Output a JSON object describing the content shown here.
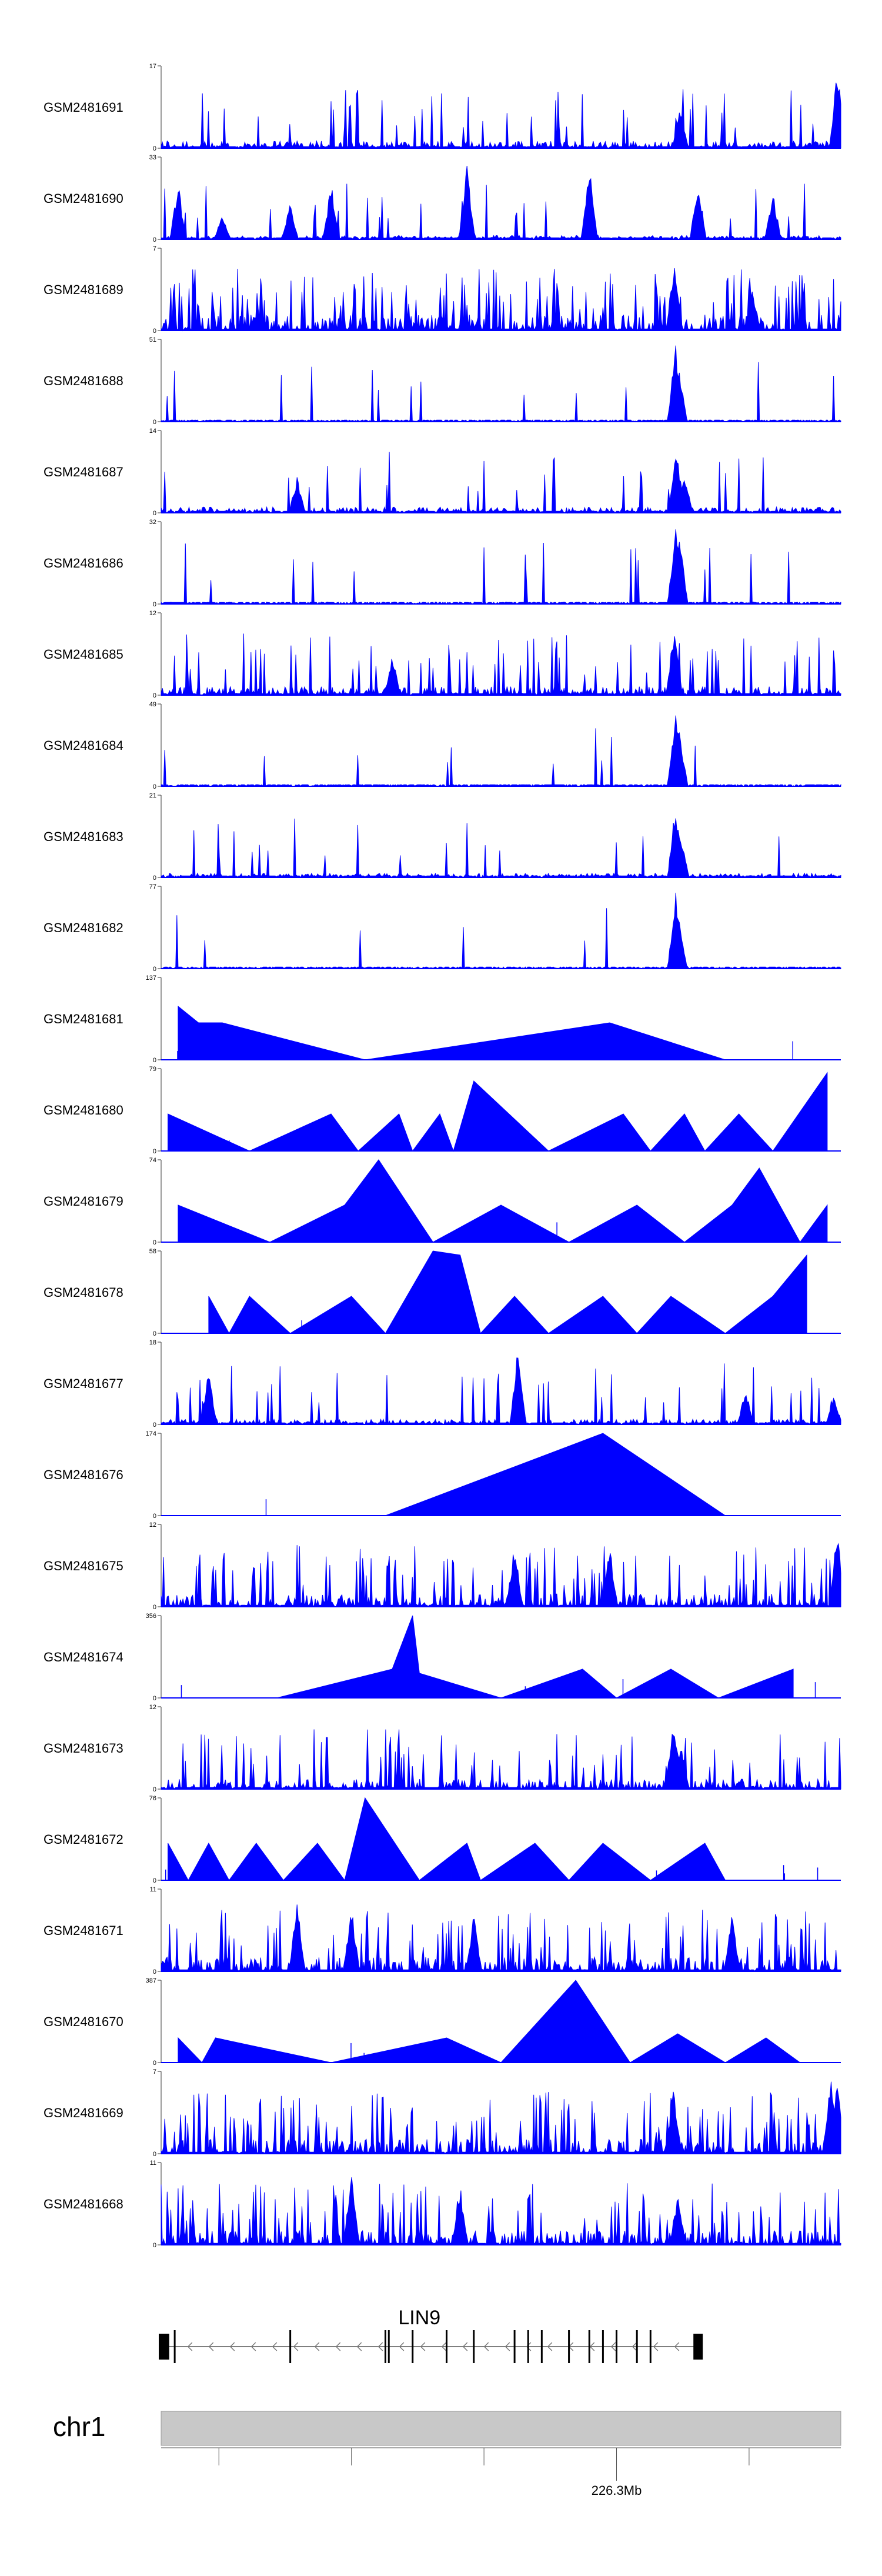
{
  "chart_data": {
    "type": "area",
    "title": "",
    "color": "#0000ff",
    "tracks": [
      {
        "name": "GSM2481691",
        "ymax": "17",
        "ymin": "0",
        "style": "noise",
        "peaks": [
          [
            0.764,
            0.55
          ],
          [
            0.995,
            1.0
          ]
        ],
        "density": 0.25,
        "seed": 1
      },
      {
        "name": "GSM2481690",
        "ymax": "33",
        "ymin": "0",
        "style": "sparse",
        "peaks": [
          [
            0.025,
            0.7
          ],
          [
            0.09,
            0.35
          ],
          [
            0.19,
            0.45
          ],
          [
            0.25,
            0.7
          ],
          [
            0.45,
            0.9
          ],
          [
            0.63,
            0.9
          ],
          [
            0.79,
            0.75
          ],
          [
            0.9,
            0.6
          ]
        ],
        "density": 0.14,
        "seed": 2
      },
      {
        "name": "GSM2481689",
        "ymax": "7",
        "ymin": "0",
        "style": "noise",
        "peaks": [
          [
            0.755,
            0.95
          ],
          [
            0.87,
            0.55
          ]
        ],
        "density": 0.55,
        "seed": 3
      },
      {
        "name": "GSM2481688",
        "ymax": "51",
        "ymin": "0",
        "style": "noise",
        "peaks": [
          [
            0.757,
            0.95
          ],
          [
            0.762,
            0.7
          ]
        ],
        "density": 0.05,
        "seed": 4
      },
      {
        "name": "GSM2481687",
        "ymax": "14",
        "ymin": "0",
        "style": "noise",
        "peaks": [
          [
            0.758,
            0.9
          ],
          [
            0.2,
            0.45
          ],
          [
            0.77,
            0.5
          ]
        ],
        "density": 0.2,
        "seed": 5
      },
      {
        "name": "GSM2481686",
        "ymax": "32",
        "ymin": "0",
        "style": "noise",
        "peaks": [
          [
            0.757,
            1.0
          ],
          [
            0.763,
            0.85
          ]
        ],
        "density": 0.07,
        "seed": 6
      },
      {
        "name": "GSM2481685",
        "ymax": "12",
        "ymin": "0",
        "style": "noise",
        "peaks": [
          [
            0.755,
            0.9
          ],
          [
            0.34,
            0.5
          ]
        ],
        "density": 0.3,
        "seed": 7
      },
      {
        "name": "GSM2481684",
        "ymax": "49",
        "ymin": "0",
        "style": "noise",
        "peaks": [
          [
            0.757,
            0.95
          ],
          [
            0.763,
            0.7
          ]
        ],
        "density": 0.06,
        "seed": 8
      },
      {
        "name": "GSM2481683",
        "ymax": "21",
        "ymin": "0",
        "style": "noise",
        "peaks": [
          [
            0.757,
            0.95
          ],
          [
            0.765,
            0.55
          ]
        ],
        "density": 0.15,
        "seed": 9
      },
      {
        "name": "GSM2481682",
        "ymax": "77",
        "ymin": "0",
        "style": "noise",
        "peaks": [
          [
            0.757,
            0.95
          ],
          [
            0.762,
            0.6
          ]
        ],
        "density": 0.04,
        "seed": 10
      },
      {
        "name": "GSM2481681",
        "ymax": "137",
        "ymin": "0",
        "style": "tri",
        "peaks": [
          [
            0.025,
            0.65
          ],
          [
            0.055,
            0.45
          ],
          [
            0.09,
            0.45
          ],
          [
            0.3,
            0.0
          ],
          [
            0.66,
            0.45
          ],
          [
            0.83,
            0.0
          ]
        ],
        "density": 0,
        "seed": 11
      },
      {
        "name": "GSM2481680",
        "ymax": "79",
        "ymin": "0",
        "style": "tri",
        "peaks": [
          [
            0.01,
            0.45
          ],
          [
            0.13,
            0.0
          ],
          [
            0.25,
            0.45
          ],
          [
            0.29,
            0.0
          ],
          [
            0.35,
            0.45
          ],
          [
            0.37,
            0.0
          ],
          [
            0.41,
            0.45
          ],
          [
            0.43,
            0.0
          ],
          [
            0.46,
            0.85
          ],
          [
            0.57,
            0.0
          ],
          [
            0.68,
            0.45
          ],
          [
            0.72,
            0.0
          ],
          [
            0.77,
            0.45
          ],
          [
            0.8,
            0.0
          ],
          [
            0.85,
            0.45
          ],
          [
            0.9,
            0.0
          ],
          [
            0.98,
            0.95
          ]
        ],
        "density": 0,
        "seed": 12
      },
      {
        "name": "GSM2481679",
        "ymax": "74",
        "ymin": "0",
        "style": "tri",
        "peaks": [
          [
            0.025,
            0.45
          ],
          [
            0.16,
            0.0
          ],
          [
            0.27,
            0.45
          ],
          [
            0.32,
            1.0
          ],
          [
            0.4,
            0.0
          ],
          [
            0.5,
            0.45
          ],
          [
            0.6,
            0.0
          ],
          [
            0.7,
            0.45
          ],
          [
            0.77,
            0.0
          ],
          [
            0.84,
            0.45
          ],
          [
            0.88,
            0.9
          ],
          [
            0.94,
            0.0
          ],
          [
            0.98,
            0.45
          ]
        ],
        "density": 0,
        "seed": 13
      },
      {
        "name": "GSM2481678",
        "ymax": "58",
        "ymin": "0",
        "style": "tri",
        "peaks": [
          [
            0.07,
            0.45
          ],
          [
            0.1,
            0.0
          ],
          [
            0.13,
            0.45
          ],
          [
            0.19,
            0.0
          ],
          [
            0.28,
            0.45
          ],
          [
            0.33,
            0.0
          ],
          [
            0.4,
            1.0
          ],
          [
            0.44,
            0.95
          ],
          [
            0.47,
            0.0
          ],
          [
            0.52,
            0.45
          ],
          [
            0.57,
            0.0
          ],
          [
            0.65,
            0.45
          ],
          [
            0.7,
            0.0
          ],
          [
            0.75,
            0.45
          ],
          [
            0.83,
            0.0
          ],
          [
            0.9,
            0.45
          ],
          [
            0.95,
            0.95
          ]
        ],
        "density": 0,
        "seed": 14
      },
      {
        "name": "GSM2481677",
        "ymax": "18",
        "ymin": "0",
        "style": "noise",
        "peaks": [
          [
            0.07,
            0.7
          ],
          [
            0.525,
            0.95
          ],
          [
            0.86,
            0.45
          ],
          [
            0.99,
            0.35
          ]
        ],
        "density": 0.18,
        "seed": 15
      },
      {
        "name": "GSM2481676",
        "ymax": "174",
        "ymin": "0",
        "style": "tri",
        "peaks": [
          [
            0.33,
            0.0
          ],
          [
            0.65,
            1.0
          ],
          [
            0.83,
            0.0
          ]
        ],
        "density": 0,
        "seed": 16
      },
      {
        "name": "GSM2481675",
        "ymax": "12",
        "ymin": "0",
        "style": "noise",
        "peaks": [
          [
            0.52,
            0.8
          ],
          [
            0.66,
            0.75
          ],
          [
            0.995,
            0.95
          ]
        ],
        "density": 0.45,
        "seed": 17
      },
      {
        "name": "GSM2481674",
        "ymax": "356",
        "ymin": "0",
        "style": "tri",
        "peaks": [
          [
            0.17,
            0.0
          ],
          [
            0.34,
            0.35
          ],
          [
            0.37,
            1.0
          ],
          [
            0.38,
            0.3
          ],
          [
            0.5,
            0.0
          ],
          [
            0.62,
            0.35
          ],
          [
            0.67,
            0.0
          ],
          [
            0.75,
            0.35
          ],
          [
            0.82,
            0.0
          ],
          [
            0.93,
            0.35
          ]
        ],
        "density": 0,
        "seed": 18
      },
      {
        "name": "GSM2481673",
        "ymax": "12",
        "ymin": "0",
        "style": "noise",
        "peaks": [
          [
            0.754,
            0.95
          ],
          [
            0.765,
            0.6
          ]
        ],
        "density": 0.35,
        "seed": 19
      },
      {
        "name": "GSM2481672",
        "ymax": "76",
        "ymin": "0",
        "style": "tri",
        "peaks": [
          [
            0.01,
            0.45
          ],
          [
            0.04,
            0.0
          ],
          [
            0.07,
            0.45
          ],
          [
            0.1,
            0.0
          ],
          [
            0.14,
            0.45
          ],
          [
            0.18,
            0.0
          ],
          [
            0.23,
            0.45
          ],
          [
            0.27,
            0.0
          ],
          [
            0.3,
            1.0
          ],
          [
            0.38,
            0.0
          ],
          [
            0.45,
            0.45
          ],
          [
            0.47,
            0.0
          ],
          [
            0.55,
            0.45
          ],
          [
            0.6,
            0.0
          ],
          [
            0.65,
            0.45
          ],
          [
            0.72,
            0.0
          ],
          [
            0.8,
            0.45
          ],
          [
            0.83,
            0.0
          ]
        ],
        "density": 0,
        "seed": 20
      },
      {
        "name": "GSM2481671",
        "ymax": "11",
        "ymin": "0",
        "style": "noise",
        "peaks": [
          [
            0.2,
            0.9
          ],
          [
            0.28,
            0.85
          ],
          [
            0.46,
            0.7
          ],
          [
            0.84,
            0.7
          ]
        ],
        "density": 0.5,
        "seed": 21
      },
      {
        "name": "GSM2481670",
        "ymax": "387",
        "ymin": "0",
        "style": "tri",
        "peaks": [
          [
            0.025,
            0.3
          ],
          [
            0.06,
            0.0
          ],
          [
            0.08,
            0.3
          ],
          [
            0.25,
            0.0
          ],
          [
            0.42,
            0.3
          ],
          [
            0.5,
            0.0
          ],
          [
            0.61,
            1.0
          ],
          [
            0.69,
            0.0
          ],
          [
            0.76,
            0.35
          ],
          [
            0.83,
            0.0
          ],
          [
            0.89,
            0.3
          ],
          [
            0.94,
            0.0
          ]
        ],
        "density": 0,
        "seed": 22
      },
      {
        "name": "GSM2481669",
        "ymax": "7",
        "ymin": "0",
        "style": "noise",
        "peaks": [
          [
            0.754,
            0.8
          ],
          [
            0.985,
            0.95
          ],
          [
            0.995,
            0.9
          ]
        ],
        "density": 0.5,
        "seed": 23
      },
      {
        "name": "GSM2481668",
        "ymax": "11",
        "ymin": "0",
        "style": "noise",
        "peaks": [
          [
            0.28,
            0.95
          ],
          [
            0.44,
            0.75
          ],
          [
            0.76,
            0.65
          ]
        ],
        "density": 0.5,
        "seed": 24
      }
    ],
    "gene": {
      "name": "LIN9",
      "strand": "-",
      "exons": [
        0.005,
        0.02,
        0.19,
        0.33,
        0.335,
        0.37,
        0.42,
        0.46,
        0.52,
        0.54,
        0.56,
        0.6,
        0.63,
        0.65,
        0.67,
        0.7,
        0.72,
        0.79
      ]
    },
    "chromosome": {
      "name": "chr1",
      "ticks": [
        0.085,
        0.28,
        0.475,
        0.67,
        0.865
      ],
      "labeled_tick": {
        "pos": 0.67,
        "label": "226.3Mb"
      }
    }
  }
}
